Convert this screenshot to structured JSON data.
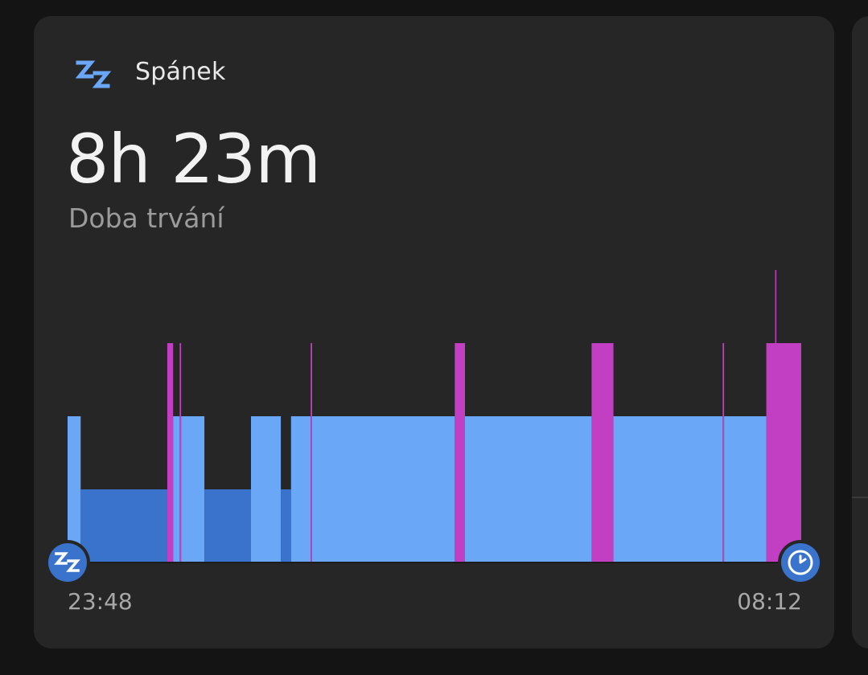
{
  "header": {
    "title": "Spánek",
    "icon": "zz-sleep-icon"
  },
  "summary": {
    "duration": "8h 23m",
    "duration_label": "Doba trvání"
  },
  "colors": {
    "card_bg": "#262627",
    "light_sleep": "#6aa7f7",
    "deep_sleep": "#3a73cc",
    "awake": "#c23ec2",
    "accent": "#6aa7f7"
  },
  "timeline": {
    "start_time": "23:48",
    "end_time": "08:12",
    "start_icon": "zz-sleep-icon",
    "end_icon": "alarm-clock-icon"
  },
  "chart_data": {
    "type": "bar",
    "description_units": "minutes from sleep start (23:48); level 1 = deep, 2 = light, 3 = awake",
    "x_range": [
      0,
      504
    ],
    "levels": [
      "deep",
      "light",
      "awake"
    ],
    "segments": [
      {
        "start": 0.0,
        "end": 9.0,
        "level": "light"
      },
      {
        "start": 9.0,
        "end": 68.5,
        "level": "deep"
      },
      {
        "start": 68.5,
        "end": 72.5,
        "level": "awake"
      },
      {
        "start": 72.5,
        "end": 77.0,
        "level": "light"
      },
      {
        "start": 77.0,
        "end": 78.0,
        "level": "awake"
      },
      {
        "start": 78.0,
        "end": 94.0,
        "level": "light"
      },
      {
        "start": 94.0,
        "end": 126.0,
        "level": "deep"
      },
      {
        "start": 126.0,
        "end": 146.5,
        "level": "light"
      },
      {
        "start": 146.5,
        "end": 153.5,
        "level": "deep"
      },
      {
        "start": 153.5,
        "end": 167.0,
        "level": "light"
      },
      {
        "start": 167.0,
        "end": 168.0,
        "level": "awake"
      },
      {
        "start": 168.0,
        "end": 266.0,
        "level": "light"
      },
      {
        "start": 266.0,
        "end": 273.0,
        "level": "awake"
      },
      {
        "start": 273.0,
        "end": 360.0,
        "level": "light"
      },
      {
        "start": 360.0,
        "end": 375.0,
        "level": "awake"
      },
      {
        "start": 375.0,
        "end": 450.0,
        "level": "light"
      },
      {
        "start": 450.0,
        "end": 451.0,
        "level": "awake"
      },
      {
        "start": 451.0,
        "end": 480.0,
        "level": "light"
      },
      {
        "start": 480.0,
        "end": 504.0,
        "level": "awake"
      }
    ],
    "spikes": [
      {
        "at": 486.5,
        "level": "awake-peak"
      }
    ],
    "xlabel_start": "23:48",
    "xlabel_end": "08:12"
  }
}
